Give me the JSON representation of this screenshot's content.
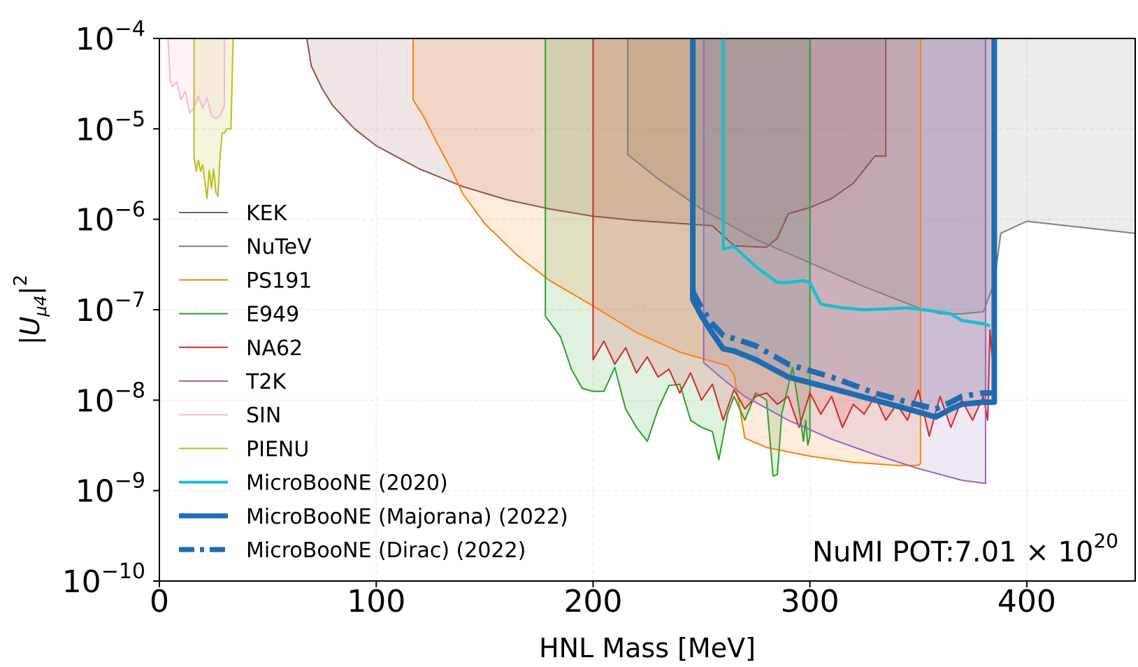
{
  "chart_data": {
    "type": "line",
    "xlabel": "HNL Mass [MeV]",
    "ylabel": "|U_{μ4}|²",
    "xlim": [
      0,
      450
    ],
    "ylim": [
      1e-10,
      0.0001
    ],
    "yscale": "log",
    "grid": true,
    "legend_position": "middle-left",
    "x_ticks": [
      {
        "value": 0,
        "label": "0"
      },
      {
        "value": 100,
        "label": "100"
      },
      {
        "value": 200,
        "label": "200"
      },
      {
        "value": 300,
        "label": "300"
      },
      {
        "value": 400,
        "label": "400"
      }
    ],
    "y_ticks": [
      {
        "value": 1e-10,
        "base": "10",
        "exp": "−10"
      },
      {
        "value": 1e-09,
        "base": "10",
        "exp": "−9"
      },
      {
        "value": 1e-08,
        "base": "10",
        "exp": "−8"
      },
      {
        "value": 1e-07,
        "base": "10",
        "exp": "−7"
      },
      {
        "value": 1e-06,
        "base": "10",
        "exp": "−6"
      },
      {
        "value": 1e-05,
        "base": "10",
        "exp": "−5"
      },
      {
        "value": 0.0001,
        "base": "10",
        "exp": "−4"
      }
    ],
    "annotation": {
      "prefix": "NuMI POT:7.01",
      "times": "×",
      "base": "10",
      "exp": "20"
    },
    "series": [
      {
        "name": "KEK",
        "color": "#8c564b",
        "fill": true,
        "width": 2,
        "x": [
          68,
          70,
          75,
          80,
          90,
          100,
          120,
          140,
          160,
          180,
          200,
          220,
          240,
          255,
          265,
          280,
          285,
          290,
          300,
          310,
          320,
          330,
          335,
          335
        ],
        "y": [
          0.0001,
          5e-05,
          2.8e-05,
          1.8e-05,
          1e-05,
          6.5e-06,
          3.6e-06,
          2.3e-06,
          1.65e-06,
          1.3e-06,
          1.08e-06,
          9.7e-07,
          9e-07,
          8.5e-07,
          5.1e-07,
          4.9e-07,
          6.2e-07,
          1.15e-06,
          1.35e-06,
          1.7e-06,
          2.5e-06,
          5e-06,
          5e-06,
          0.0001
        ]
      },
      {
        "name": "NuTeV",
        "color": "#7f7f7f",
        "fill": true,
        "width": 2,
        "x": [
          216,
          216,
          230,
          250,
          275,
          300,
          325,
          350,
          360,
          370,
          380,
          385,
          388,
          400,
          450
        ],
        "y": [
          0.0001,
          5.2e-06,
          2.8e-06,
          1.3e-06,
          6e-07,
          3.3e-07,
          1.8e-07,
          1.05e-07,
          9e-08,
          9e-08,
          9.5e-08,
          2e-07,
          7e-07,
          9.5e-07,
          7e-07
        ]
      },
      {
        "name": "PS191",
        "color": "#ff7f0e",
        "fill": true,
        "width": 2,
        "x": [
          117,
          117,
          122,
          128,
          135,
          140,
          150,
          165,
          180,
          200,
          220,
          240,
          262,
          265,
          270,
          280,
          300,
          320,
          340,
          350,
          351,
          351
        ],
        "y": [
          0.0001,
          2.1e-05,
          1.35e-05,
          7e-06,
          3.4e-06,
          1.9e-06,
          9e-07,
          4e-07,
          2.1e-07,
          1.1e-07,
          5.6e-08,
          3.4e-08,
          2.4e-08,
          1.9e-08,
          3.8e-09,
          3e-09,
          2.4e-09,
          2.05e-09,
          1.9e-09,
          1.9e-09,
          2e-09,
          0.0001
        ]
      },
      {
        "name": "E949",
        "color": "#2ca02c",
        "fill": true,
        "width": 2,
        "x": [
          178,
          178,
          185,
          190,
          195,
          200,
          205,
          210,
          215,
          220,
          225,
          230,
          235,
          240,
          245,
          250,
          255,
          258,
          262,
          265,
          270,
          275,
          280,
          283,
          285,
          287,
          292,
          295,
          297,
          298,
          299,
          300,
          300
        ],
        "y": [
          0.0001,
          8.5e-08,
          5e-08,
          2.2e-08,
          1.35e-08,
          1.25e-08,
          1.25e-08,
          2.3e-08,
          8e-09,
          5e-09,
          3.5e-09,
          8e-09,
          1.45e-08,
          1.5e-08,
          6e-09,
          5e-09,
          4.5e-09,
          2.2e-09,
          7e-09,
          1.1e-08,
          6e-09,
          1.2e-08,
          1e-08,
          1.45e-09,
          1.5e-09,
          7e-09,
          2.3e-08,
          8e-09,
          3.5e-09,
          6e-09,
          3.2e-09,
          4e-09,
          0.0001
        ]
      },
      {
        "name": "NA62",
        "color": "#d62728",
        "fill": true,
        "width": 2,
        "x": [
          200,
          200,
          205,
          210,
          215,
          220,
          225,
          230,
          235,
          240,
          245,
          250,
          255,
          260,
          265,
          270,
          275,
          280,
          285,
          290,
          295,
          300,
          305,
          310,
          315,
          320,
          325,
          330,
          335,
          340,
          345,
          350,
          355,
          360,
          365,
          370,
          375,
          380,
          382,
          383,
          384,
          385,
          385
        ],
        "y": [
          0.0001,
          2.8e-08,
          4.5e-08,
          2.5e-08,
          3.8e-08,
          2e-08,
          3e-08,
          1.8e-08,
          2.2e-08,
          1.2e-08,
          2e-08,
          1e-08,
          1.5e-08,
          6e-09,
          1.3e-08,
          8e-09,
          1.1e-08,
          1.2e-08,
          9e-09,
          1.1e-08,
          5e-09,
          1.2e-08,
          7e-09,
          1.1e-08,
          5e-09,
          9e-09,
          7e-09,
          1.1e-08,
          6e-09,
          9e-09,
          6e-09,
          1.3e-08,
          4e-09,
          1.1e-08,
          5e-09,
          1e-08,
          6e-09,
          1.1e-08,
          6e-09,
          6e-08,
          3e-08,
          5.5e-08,
          0.0001
        ]
      },
      {
        "name": "T2K",
        "color": "#9467bd",
        "fill": true,
        "width": 2,
        "x": [
          251,
          251,
          260,
          270,
          290,
          310,
          330,
          350,
          370,
          381,
          381
        ],
        "y": [
          0.0001,
          2.6e-08,
          1.7e-08,
          1.1e-08,
          6e-09,
          3.7e-09,
          2.5e-09,
          1.75e-09,
          1.3e-09,
          1.2e-09,
          0.0001
        ]
      },
      {
        "name": "SIN",
        "color": "#f7b6d2",
        "fill": true,
        "width": 2,
        "x": [
          4,
          5,
          6,
          8,
          10,
          12,
          14,
          16,
          18,
          20,
          22,
          24,
          26,
          28,
          30,
          30
        ],
        "y": [
          0.0001,
          3.5e-05,
          2.9e-05,
          3.3e-05,
          2.1e-05,
          2.6e-05,
          1.5e-05,
          1.7e-05,
          2.3e-05,
          1.7e-05,
          2.2e-05,
          1.4e-05,
          1.3e-05,
          1.4e-05,
          1.8e-05,
          0.0001
        ]
      },
      {
        "name": "PIENU",
        "color": "#bcbd22",
        "fill": true,
        "width": 2,
        "x": [
          16,
          16,
          17,
          18,
          19,
          20,
          21,
          22,
          23,
          24,
          25,
          26,
          27,
          28,
          29,
          30,
          31,
          33,
          34
        ],
        "y": [
          0.0001,
          5e-06,
          3.4e-06,
          4.5e-06,
          3.4e-06,
          4e-06,
          2.6e-06,
          1.7e-06,
          3.5e-06,
          2.2e-06,
          3.6e-06,
          2e-06,
          1.8e-06,
          5e-06,
          9e-06,
          9e-06,
          1e-05,
          1e-05,
          0.0001
        ]
      },
      {
        "name": "MicroBooNE (2020)",
        "color": "#17becf",
        "fill": false,
        "width": 4.5,
        "x": [
          260,
          260,
          265,
          275,
          285,
          290,
          297,
          300,
          305,
          315,
          325,
          335,
          345,
          355,
          365,
          370,
          380,
          383
        ],
        "y": [
          0.0001,
          4.7e-07,
          5e-07,
          3e-07,
          2e-07,
          2e-07,
          2.1e-07,
          2e-07,
          1.15e-07,
          1.05e-07,
          1e-07,
          1.02e-07,
          1.05e-07,
          9.8e-08,
          9e-08,
          7.6e-08,
          7e-08,
          6.6e-08
        ]
      },
      {
        "name": "MicroBooNE (Majorana) (2022)",
        "color": "#1f6cb0",
        "fill": true,
        "width": 8,
        "x": [
          246,
          246,
          250,
          255,
          260,
          265,
          275,
          290,
          310,
          330,
          345,
          358,
          365,
          370,
          380,
          385,
          385
        ],
        "y": [
          0.0001,
          1.3e-07,
          8.5e-08,
          5.5e-08,
          3.7e-08,
          3.5e-08,
          2.8e-08,
          1.8e-08,
          1.35e-08,
          1e-08,
          8e-09,
          6.5e-09,
          8e-09,
          9e-09,
          9.5e-09,
          9.5e-09,
          0.0001
        ]
      },
      {
        "name": "MicroBooNE (Dirac) (2022)",
        "color": "#1f6cb0",
        "fill": false,
        "width": 8,
        "dash": true,
        "x": [
          246,
          250,
          255,
          260,
          265,
          275,
          290,
          310,
          330,
          345,
          358,
          365,
          370,
          380,
          385
        ],
        "y": [
          1.6e-07,
          1.05e-07,
          7e-08,
          5.2e-08,
          4.8e-08,
          4e-08,
          2.5e-08,
          1.8e-08,
          1.2e-08,
          9.5e-09,
          8e-09,
          9.5e-09,
          1.1e-08,
          1.2e-08,
          1.2e-08
        ]
      }
    ]
  }
}
